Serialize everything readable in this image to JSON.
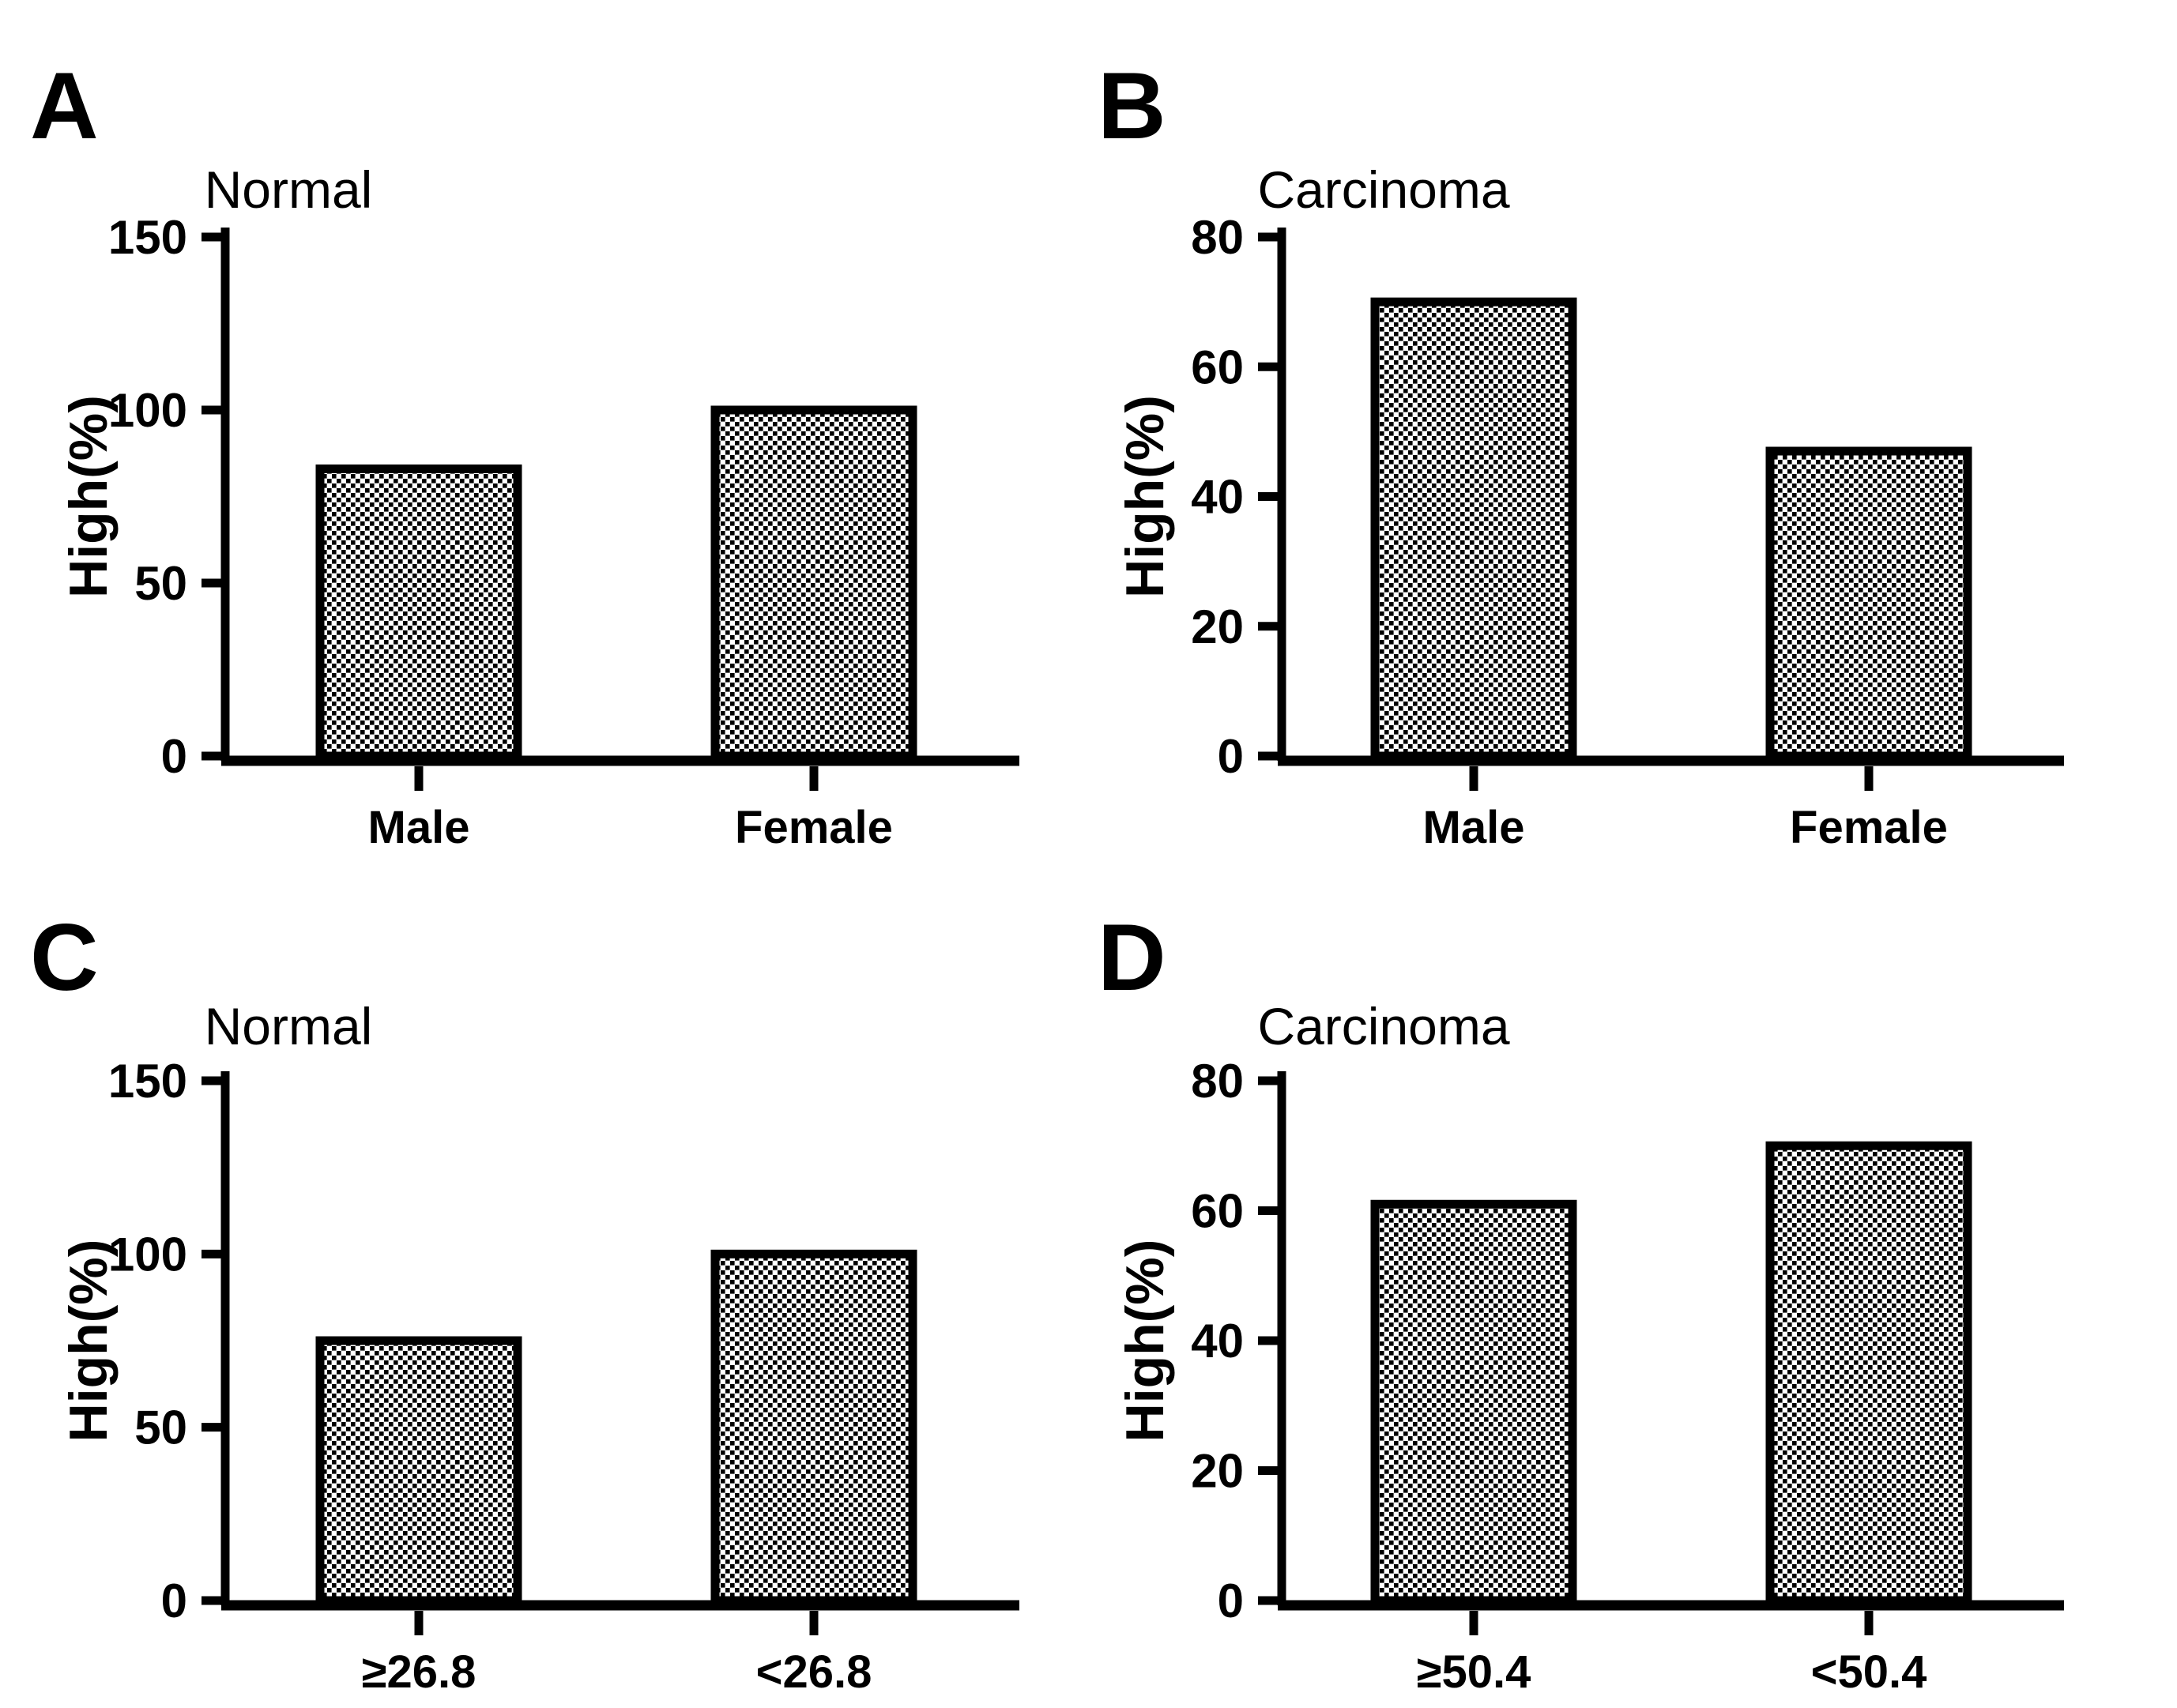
{
  "colors": {
    "foreground": "#000000",
    "background": "#ffffff",
    "bar_fill": "checkerboard-black-on-white"
  },
  "chart_data": [
    {
      "type": "bar",
      "panel_label": "A",
      "title": "Normal",
      "ylabel": "High(%)",
      "categories": [
        "Male",
        "Female"
      ],
      "values": [
        83,
        100
      ],
      "ylim": [
        0,
        150
      ],
      "yticks": [
        0,
        50,
        100,
        150
      ],
      "grid": "off",
      "legend": "none",
      "bar_pattern": "checkerboard"
    },
    {
      "type": "bar",
      "panel_label": "B",
      "title": "Carcinoma",
      "ylabel": "High(%)",
      "categories": [
        "Male",
        "Female"
      ],
      "values": [
        70,
        47
      ],
      "ylim": [
        0,
        80
      ],
      "yticks": [
        0,
        20,
        40,
        60,
        80
      ],
      "grid": "off",
      "legend": "none",
      "bar_pattern": "checkerboard"
    },
    {
      "type": "bar",
      "panel_label": "C",
      "title": "Normal",
      "ylabel": "High(%)",
      "categories": [
        "≥26.8",
        "<26.8"
      ],
      "values": [
        75,
        100
      ],
      "ylim": [
        0,
        150
      ],
      "yticks": [
        0,
        50,
        100,
        150
      ],
      "grid": "off",
      "legend": "none",
      "bar_pattern": "checkerboard"
    },
    {
      "type": "bar",
      "panel_label": "D",
      "title": "Carcinoma",
      "ylabel": "High(%)",
      "categories": [
        "≥50.4",
        "<50.4"
      ],
      "values": [
        61,
        70
      ],
      "ylim": [
        0,
        80
      ],
      "yticks": [
        0,
        20,
        40,
        60,
        80
      ],
      "grid": "off",
      "legend": "none",
      "bar_pattern": "checkerboard"
    }
  ]
}
